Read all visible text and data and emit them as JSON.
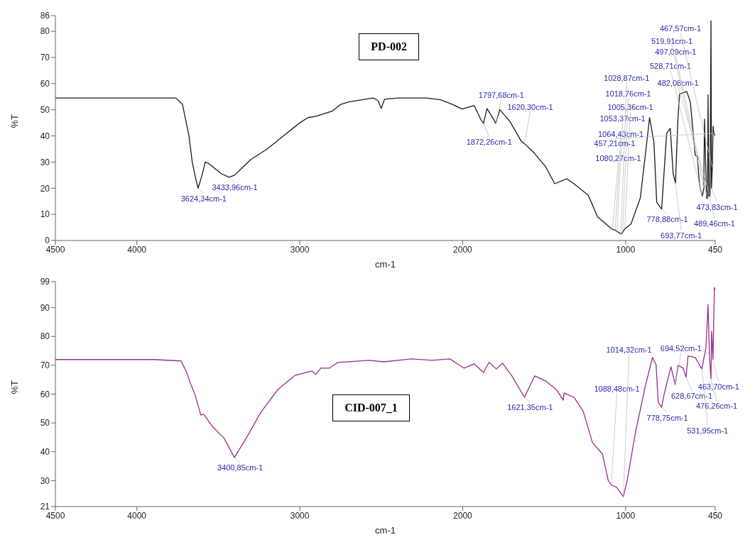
{
  "chart_data": [
    {
      "type": "line",
      "title": "PD-002",
      "xlabel": "cm-1",
      "ylabel": "%T",
      "color": "#1a1a1a",
      "x": [
        4500,
        4200,
        3900,
        3760,
        3720,
        3700,
        3680,
        3660,
        3640,
        3624,
        3600,
        3580,
        3560,
        3520,
        3480,
        3434,
        3400,
        3350,
        3300,
        3200,
        3100,
        3000,
        2950,
        2900,
        2850,
        2800,
        2750,
        2700,
        2600,
        2550,
        2520,
        2500,
        2480,
        2400,
        2223,
        2136,
        2061,
        2004,
        1930,
        1886,
        1872,
        1851,
        1807,
        1798,
        1772,
        1711,
        1641,
        1620,
        1566,
        1492,
        1435,
        1361,
        1317,
        1229,
        1172,
        1085,
        1064,
        1053,
        1028,
        1019,
        1005,
        967,
        910,
        879,
        853,
        826,
        809,
        779,
        748,
        726,
        708,
        694,
        680,
        669,
        625,
        603,
        573,
        560,
        546,
        529,
        520,
        516,
        503,
        497,
        494,
        489,
        485,
        482,
        476,
        473,
        468,
        463,
        459,
        457,
        450
      ],
      "values": [
        54.5,
        54.5,
        54.5,
        54.5,
        52,
        46,
        40,
        30,
        24,
        20,
        25,
        30,
        29.5,
        27.5,
        25.5,
        24.2,
        25,
        28,
        31,
        35,
        40,
        45,
        47,
        47.5,
        48.5,
        49.5,
        52,
        53,
        54,
        54.5,
        53.5,
        50.5,
        54,
        54.5,
        54.5,
        53.8,
        52,
        50.3,
        51.6,
        46,
        44.8,
        50.5,
        46,
        44.8,
        50,
        45.6,
        38,
        37,
        33.8,
        28.3,
        21.7,
        23.6,
        21.7,
        17.3,
        9,
        4.4,
        4,
        3.5,
        2.5,
        3,
        4.5,
        6.3,
        16.2,
        32.7,
        47,
        37.4,
        14.6,
        12,
        41,
        42.9,
        25.5,
        22,
        45,
        56,
        57,
        53,
        32.7,
        32,
        21,
        17,
        20,
        46.4,
        16.2,
        16,
        55.7,
        17,
        17.3,
        17,
        84,
        20,
        28,
        43.7,
        41,
        41,
        40
      ],
      "xlim": [
        4500,
        450
      ],
      "xticks": [
        4500,
        4000,
        3000,
        2000,
        1000,
        450
      ],
      "ylim": [
        0,
        86
      ],
      "yticks": [
        0,
        10,
        20,
        30,
        40,
        50,
        60,
        70,
        80,
        86
      ],
      "annotations": [
        {
          "text": "3624,34cm-1",
          "x": 3624.34,
          "y": 20
        },
        {
          "text": "3433,96cm-1",
          "x": 3433.96,
          "y": 24.2
        },
        {
          "text": "1872,26cm-1",
          "x": 1872.26,
          "y": 44.8
        },
        {
          "text": "1797,68cm-1",
          "x": 1797.68,
          "y": 44.8
        },
        {
          "text": "1620,30cm-1",
          "x": 1620.3,
          "y": 37
        },
        {
          "text": "1080,27cm-1",
          "x": 1080.27,
          "y": 4.4
        },
        {
          "text": "1064,43cm-1",
          "x": 1064.43,
          "y": 4
        },
        {
          "text": "1053,37cm-1",
          "x": 1053.37,
          "y": 3.5
        },
        {
          "text": "1005,36cm-1",
          "x": 1005.36,
          "y": 4.5
        },
        {
          "text": "1018,76cm-1",
          "x": 1018.76,
          "y": 3
        },
        {
          "text": "1028,87cm-1",
          "x": 1028.87,
          "y": 2.5
        },
        {
          "text": "778,88cm-1",
          "x": 778.88,
          "y": 12
        },
        {
          "text": "693,77cm-1",
          "x": 693.77,
          "y": 22
        },
        {
          "text": "473,83cm-1",
          "x": 473.83,
          "y": 20
        },
        {
          "text": "528,71cm-1",
          "x": 528.71,
          "y": 17
        },
        {
          "text": "489,46cm-1",
          "x": 489.46,
          "y": 17
        },
        {
          "text": "482,08cm-1",
          "x": 482.08,
          "y": 17
        },
        {
          "text": "497,09cm-1",
          "x": 497.09,
          "y": 16
        },
        {
          "text": "519,91cm-1",
          "x": 519.91,
          "y": 20
        },
        {
          "text": "467,57cm-1",
          "x": 467.57,
          "y": 28
        },
        {
          "text": "457,21cm-1",
          "x": 457.21,
          "y": 41
        }
      ]
    },
    {
      "type": "line",
      "title": "CID-007_1",
      "xlabel": "cm-1",
      "ylabel": "%T",
      "color": "#9b2c8a",
      "x": [
        4500,
        4200,
        3900,
        3729,
        3694,
        3677,
        3642,
        3607,
        3589,
        3537,
        3467,
        3401,
        3327,
        3239,
        3134,
        3029,
        2924,
        2902,
        2871,
        2819,
        2766,
        2574,
        2486,
        2311,
        2188,
        2079,
        1991,
        1930,
        1873,
        1838,
        1794,
        1755,
        1698,
        1621,
        1558,
        1492,
        1422,
        1383,
        1378,
        1317,
        1260,
        1203,
        1142,
        1107,
        1088,
        1054,
        1014,
        988,
        940,
        879,
        835,
        813,
        800,
        779,
        765,
        722,
        695,
        678,
        647,
        629,
        617,
        573,
        532,
        507,
        494,
        485,
        476,
        472,
        464,
        455,
        450
      ],
      "values": [
        72,
        72,
        72,
        71.5,
        67.5,
        64.6,
        59.6,
        52.7,
        53,
        48.8,
        44.9,
        38,
        44.9,
        53.7,
        61.6,
        66.5,
        68,
        66.8,
        69,
        69,
        71,
        71.7,
        71.2,
        72.2,
        71.7,
        72.2,
        69,
        70.5,
        67.5,
        71,
        68.7,
        70.7,
        66.3,
        58.9,
        66.3,
        64.6,
        61.4,
        57.9,
        60.4,
        58.9,
        54,
        43.1,
        39.2,
        30.1,
        28.5,
        27.6,
        24.4,
        30.8,
        46.6,
        62.8,
        72.7,
        70.2,
        57.2,
        55.4,
        59.6,
        69.5,
        63.3,
        70,
        69,
        65.8,
        73.2,
        72.7,
        68.7,
        76.1,
        91.1,
        72.7,
        65.3,
        81.8,
        72,
        97,
        96
      ],
      "xlim": [
        4500,
        450
      ],
      "xticks": [
        4500,
        4000,
        3000,
        2000,
        1000,
        450
      ],
      "ylim": [
        21,
        99
      ],
      "yticks": [
        21,
        30,
        40,
        50,
        60,
        70,
        80,
        90,
        99
      ],
      "annotations": [
        {
          "text": "3400,85cm-1",
          "x": 3400.85,
          "y": 38
        },
        {
          "text": "1621,35cm-1",
          "x": 1621.35,
          "y": 58.9
        },
        {
          "text": "1088,48cm-1",
          "x": 1088.48,
          "y": 28.5
        },
        {
          "text": "1014,32cm-1",
          "x": 1014.32,
          "y": 24.4
        },
        {
          "text": "778,75cm-1",
          "x": 778.75,
          "y": 55.4
        },
        {
          "text": "694,52cm-1",
          "x": 694.52,
          "y": 63.3
        },
        {
          "text": "628,67cm-1",
          "x": 628.67,
          "y": 65.8
        },
        {
          "text": "531,95cm-1",
          "x": 531.95,
          "y": 68.7
        },
        {
          "text": "476,26cm-1",
          "x": 476.26,
          "y": 65.3
        },
        {
          "text": "463,70cm-1",
          "x": 463.7,
          "y": 72
        }
      ]
    }
  ]
}
